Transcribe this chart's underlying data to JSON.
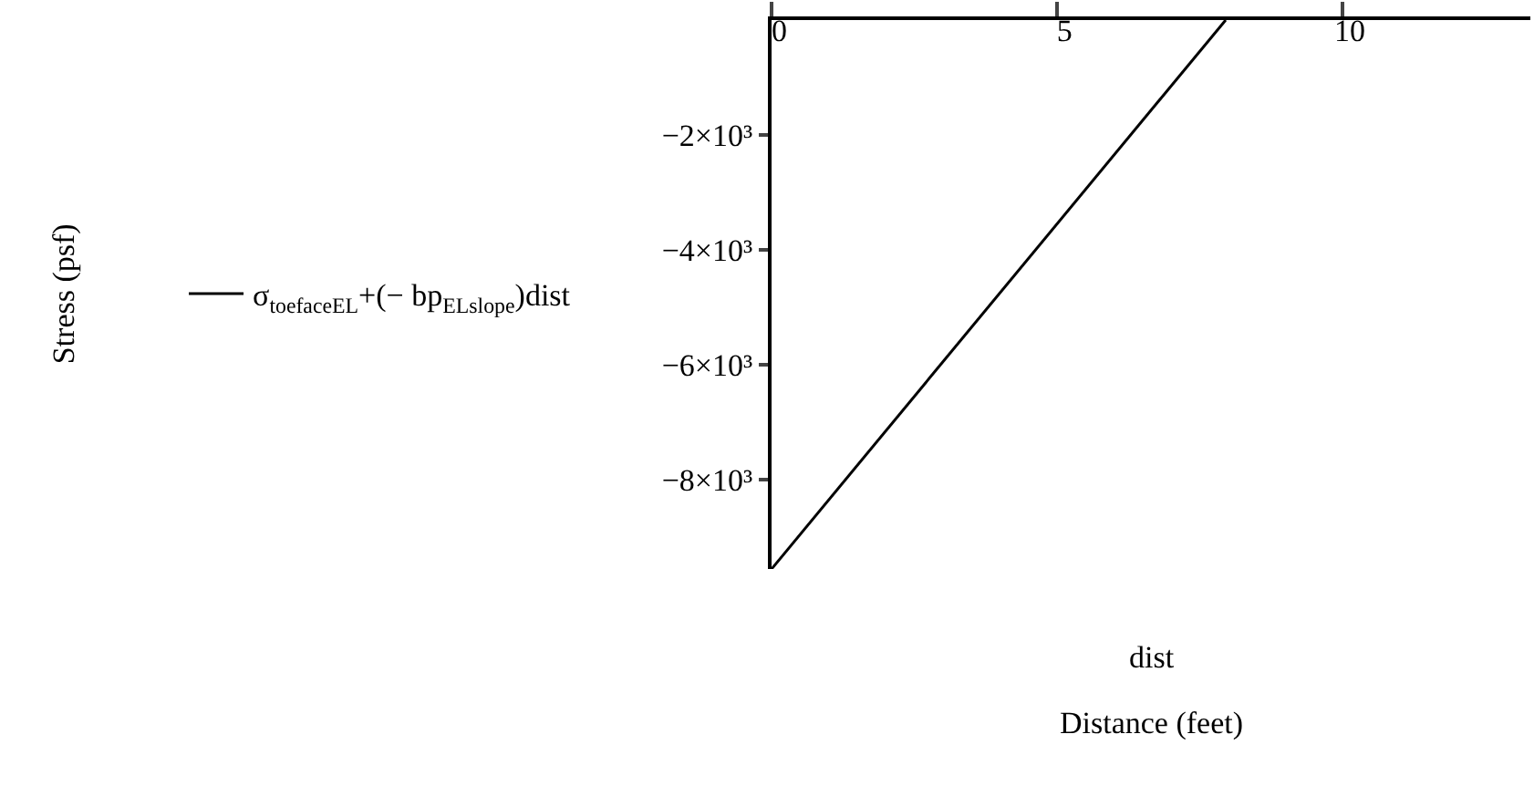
{
  "chart_data": {
    "type": "line",
    "xlabel": "dist",
    "annotations": [
      "Distance (feet)",
      "Stress (psf)"
    ],
    "x": [
      0,
      7.96
    ],
    "series": [
      {
        "name": "σ$_{toefaceEL}$+(− bp$_{ELslope}$)dist",
        "color": "#000000",
        "values": [
          -9550,
          0
        ]
      }
    ],
    "xlim": [
      0,
      13.3
    ],
    "ylim": [
      -9550,
      0
    ],
    "xticks": [
      0,
      5,
      10
    ],
    "yticks": [
      {
        "value": -2000,
        "label": "−2×10³"
      },
      {
        "value": -4000,
        "label": "−4×10³"
      },
      {
        "value": -6000,
        "label": "−6×10³"
      },
      {
        "value": -8000,
        "label": "−8×10³"
      }
    ],
    "legend": "left",
    "line_style": "solid"
  }
}
